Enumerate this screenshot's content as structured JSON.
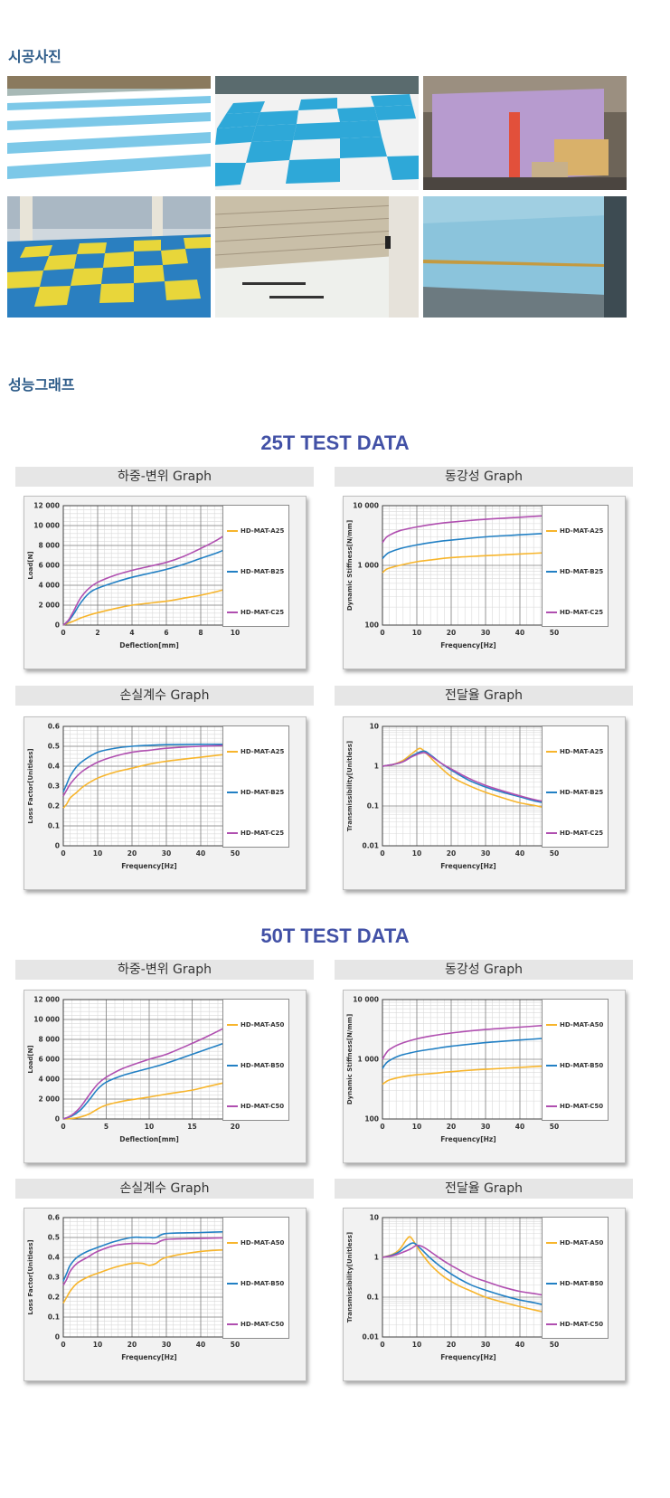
{
  "sections": {
    "photos_title": "시공사진",
    "graphs_title": "성능그래프"
  },
  "photos": [
    {
      "desc": "rooftop"
    },
    {
      "desc": "checker"
    },
    {
      "desc": "wall"
    },
    {
      "desc": "yellow-blue"
    },
    {
      "desc": "tunnel"
    },
    {
      "desc": "blue-wall"
    }
  ],
  "colors": {
    "A": "#f7b52c",
    "B": "#2280c4",
    "C": "#b04fb0",
    "title": "#4251a6",
    "section": "#2f5d8a"
  },
  "test_blocks": [
    {
      "title": "25T TEST DATA",
      "suffix": "25"
    },
    {
      "title": "50T TEST DATA",
      "suffix": "50"
    }
  ],
  "panel_titles": {
    "load": "하중-변위 Graph",
    "stiff": "동강성 Graph",
    "loss": "손실계수 Graph",
    "trans": "전달율 Graph"
  },
  "chart_data": [
    {
      "id": "load25",
      "type": "line",
      "xlabel": "Deflection[mm]",
      "ylabel": "Load[N]",
      "xlim": [
        0,
        10
      ],
      "ylim": [
        0,
        12000
      ],
      "xticks": [
        0,
        2,
        4,
        6,
        8,
        10
      ],
      "xticklabels": [
        "0",
        "2",
        "4",
        "6",
        "8",
        "10"
      ],
      "yticks": [
        0,
        2000,
        4000,
        6000,
        8000,
        10000,
        12000
      ],
      "yticklabels": [
        "0",
        "2 000",
        "4 000",
        "6 000",
        "8 000",
        "10 000",
        "12 000"
      ],
      "series": [
        {
          "name": "HD-MAT-A25",
          "color": "#f7b52c",
          "x": [
            0,
            0.3,
            0.6,
            1,
            1.5,
            2,
            3,
            4,
            5,
            6,
            7,
            8,
            9,
            10
          ],
          "y": [
            0,
            200,
            400,
            700,
            1000,
            1250,
            1650,
            2000,
            2200,
            2400,
            2700,
            3000,
            3400,
            3850
          ]
        },
        {
          "name": "HD-MAT-B25",
          "color": "#2280c4",
          "x": [
            0,
            0.3,
            0.6,
            1,
            1.5,
            2,
            3,
            4,
            5,
            6,
            7,
            8,
            9,
            10
          ],
          "y": [
            0,
            400,
            1100,
            2200,
            3200,
            3700,
            4300,
            4800,
            5200,
            5600,
            6100,
            6700,
            7300,
            8000
          ]
        },
        {
          "name": "HD-MAT-C25",
          "color": "#b04fb0",
          "x": [
            0,
            0.3,
            0.6,
            1,
            1.5,
            2,
            3,
            4,
            5,
            6,
            7,
            8,
            9,
            10
          ],
          "y": [
            0,
            500,
            1400,
            2700,
            3700,
            4300,
            5000,
            5500,
            5900,
            6300,
            6900,
            7700,
            8600,
            9700
          ]
        }
      ]
    },
    {
      "id": "stiff25",
      "type": "line",
      "xlabel": "Frequency[Hz]",
      "ylabel": "Dynamic Stiffness[N/mm]",
      "xlim": [
        0,
        50
      ],
      "ylim": [
        100,
        10000
      ],
      "yscale": "log",
      "xticks": [
        0,
        10,
        20,
        30,
        40,
        50
      ],
      "xticklabels": [
        "0",
        "10",
        "20",
        "30",
        "40",
        "50"
      ],
      "yticks": [
        100,
        1000,
        10000
      ],
      "yticklabels": [
        "100",
        "1 000",
        "10 000"
      ],
      "series": [
        {
          "name": "HD-MAT-A25",
          "color": "#f7b52c",
          "x": [
            0,
            1,
            2,
            5,
            10,
            15,
            20,
            30,
            40,
            50
          ],
          "y": [
            750,
            850,
            900,
            1000,
            1150,
            1250,
            1350,
            1450,
            1550,
            1650
          ]
        },
        {
          "name": "HD-MAT-B25",
          "color": "#2280c4",
          "x": [
            0,
            1,
            2,
            5,
            10,
            15,
            20,
            30,
            40,
            50
          ],
          "y": [
            1300,
            1500,
            1650,
            1900,
            2200,
            2450,
            2650,
            3000,
            3250,
            3500
          ]
        },
        {
          "name": "HD-MAT-C25",
          "color": "#b04fb0",
          "x": [
            0,
            1,
            2,
            5,
            10,
            15,
            20,
            30,
            40,
            50
          ],
          "y": [
            2400,
            2900,
            3200,
            3800,
            4400,
            4900,
            5300,
            5900,
            6400,
            6900
          ]
        }
      ]
    },
    {
      "id": "loss25",
      "type": "line",
      "xlabel": "Frequency[Hz]",
      "ylabel": "Loss Factor[Unitless]",
      "xlim": [
        0,
        50
      ],
      "ylim": [
        0,
        0.6
      ],
      "xticks": [
        0,
        10,
        20,
        30,
        40,
        50
      ],
      "xticklabels": [
        "0",
        "10",
        "20",
        "30",
        "40",
        "50"
      ],
      "yticks": [
        0,
        0.1,
        0.2,
        0.3,
        0.4,
        0.5,
        0.6
      ],
      "yticklabels": [
        "0",
        "0.1",
        "0.2",
        "0.3",
        "0.4",
        "0.5",
        "0.6"
      ],
      "series": [
        {
          "name": "HD-MAT-A25",
          "color": "#f7b52c",
          "x": [
            0,
            1,
            2,
            4,
            6,
            10,
            15,
            20,
            25,
            30,
            40,
            50
          ],
          "y": [
            0.19,
            0.21,
            0.24,
            0.27,
            0.3,
            0.34,
            0.37,
            0.39,
            0.41,
            0.425,
            0.445,
            0.465
          ]
        },
        {
          "name": "HD-MAT-B25",
          "color": "#2280c4",
          "x": [
            0,
            1,
            2,
            4,
            6,
            10,
            15,
            20,
            25,
            30,
            40,
            50
          ],
          "y": [
            0.27,
            0.31,
            0.35,
            0.4,
            0.43,
            0.47,
            0.49,
            0.5,
            0.505,
            0.508,
            0.51,
            0.51
          ]
        },
        {
          "name": "HD-MAT-C25",
          "color": "#b04fb0",
          "x": [
            0,
            1,
            2,
            4,
            6,
            10,
            15,
            20,
            25,
            30,
            40,
            50
          ],
          "y": [
            0.25,
            0.28,
            0.31,
            0.35,
            0.38,
            0.42,
            0.45,
            0.47,
            0.48,
            0.49,
            0.5,
            0.505
          ]
        }
      ]
    },
    {
      "id": "trans25",
      "type": "line",
      "xlabel": "Frequency[Hz]",
      "ylabel": "Transmissibility[Unitless]",
      "xlim": [
        0,
        50
      ],
      "ylim": [
        0.01,
        10
      ],
      "yscale": "log",
      "xticks": [
        0,
        10,
        20,
        30,
        40,
        50
      ],
      "xticklabels": [
        "0",
        "10",
        "20",
        "30",
        "40",
        "50"
      ],
      "yticks": [
        0.01,
        0.1,
        1,
        10
      ],
      "yticklabels": [
        "0.01",
        "0.1",
        "1",
        "10"
      ],
      "series": [
        {
          "name": "HD-MAT-A25",
          "color": "#f7b52c",
          "x": [
            0,
            3,
            6,
            9,
            11,
            13,
            16,
            20,
            25,
            30,
            35,
            40,
            45,
            50
          ],
          "y": [
            1,
            1.1,
            1.4,
            2.2,
            2.8,
            2.0,
            1.1,
            0.55,
            0.33,
            0.22,
            0.16,
            0.12,
            0.1,
            0.08
          ]
        },
        {
          "name": "HD-MAT-B25",
          "color": "#2280c4",
          "x": [
            0,
            3,
            6,
            9,
            12,
            14,
            17,
            20,
            25,
            30,
            35,
            40,
            45,
            50
          ],
          "y": [
            1,
            1.1,
            1.3,
            1.9,
            2.4,
            1.9,
            1.2,
            0.8,
            0.45,
            0.3,
            0.22,
            0.17,
            0.13,
            0.11
          ]
        },
        {
          "name": "HD-MAT-C25",
          "color": "#b04fb0",
          "x": [
            0,
            3,
            6,
            9,
            12,
            14,
            17,
            20,
            25,
            30,
            35,
            40,
            45,
            50
          ],
          "y": [
            1,
            1.1,
            1.3,
            1.8,
            2.2,
            1.8,
            1.2,
            0.85,
            0.5,
            0.33,
            0.24,
            0.18,
            0.14,
            0.12
          ]
        }
      ]
    },
    {
      "id": "load50",
      "type": "line",
      "xlabel": "Deflection[mm]",
      "ylabel": "Load[N]",
      "xlim": [
        0,
        20
      ],
      "ylim": [
        0,
        12000
      ],
      "xticks": [
        0,
        5,
        10,
        15,
        20
      ],
      "xticklabels": [
        "0",
        "5",
        "10",
        "15",
        "20"
      ],
      "yticks": [
        0,
        2000,
        4000,
        6000,
        8000,
        10000,
        12000
      ],
      "yticklabels": [
        "0",
        "2 000",
        "4 000",
        "6 000",
        "8 000",
        "10 000",
        "12 000"
      ],
      "series": [
        {
          "name": "HD-MAT-A50",
          "color": "#f7b52c",
          "x": [
            0,
            1,
            2,
            3,
            4,
            5,
            7,
            10,
            12,
            15,
            17,
            20
          ],
          "y": [
            0,
            50,
            200,
            500,
            1000,
            1400,
            1800,
            2200,
            2500,
            2900,
            3300,
            3900
          ]
        },
        {
          "name": "HD-MAT-B50",
          "color": "#2280c4",
          "x": [
            0,
            1,
            2,
            3,
            4,
            5,
            7,
            10,
            12,
            15,
            17,
            20
          ],
          "y": [
            0,
            300,
            900,
            1900,
            3000,
            3700,
            4400,
            5100,
            5600,
            6500,
            7100,
            8000
          ]
        },
        {
          "name": "HD-MAT-C50",
          "color": "#b04fb0",
          "x": [
            0,
            1,
            2,
            3,
            4,
            5,
            7,
            10,
            12,
            15,
            17,
            20
          ],
          "y": [
            0,
            400,
            1200,
            2400,
            3500,
            4200,
            5100,
            6000,
            6500,
            7600,
            8400,
            9700
          ]
        }
      ]
    },
    {
      "id": "stiff50",
      "type": "line",
      "xlabel": "Frequency[Hz]",
      "ylabel": "Dynamic Stiffness[N/mm]",
      "xlim": [
        0,
        50
      ],
      "ylim": [
        100,
        10000
      ],
      "yscale": "log",
      "xticks": [
        0,
        10,
        20,
        30,
        40,
        50
      ],
      "xticklabels": [
        "0",
        "10",
        "20",
        "30",
        "40",
        "50"
      ],
      "yticks": [
        100,
        1000,
        10000
      ],
      "yticklabels": [
        "100",
        "1 000",
        "10 000"
      ],
      "series": [
        {
          "name": "HD-MAT-A50",
          "color": "#f7b52c",
          "x": [
            0,
            1,
            2,
            5,
            10,
            15,
            20,
            30,
            40,
            50
          ],
          "y": [
            380,
            420,
            450,
            500,
            550,
            580,
            620,
            680,
            730,
            790
          ]
        },
        {
          "name": "HD-MAT-B50",
          "color": "#2280c4",
          "x": [
            0,
            1,
            2,
            5,
            10,
            15,
            20,
            30,
            40,
            50
          ],
          "y": [
            700,
            850,
            950,
            1150,
            1350,
            1500,
            1650,
            1900,
            2100,
            2300
          ]
        },
        {
          "name": "HD-MAT-C50",
          "color": "#b04fb0",
          "x": [
            0,
            1,
            2,
            5,
            10,
            15,
            20,
            30,
            40,
            50
          ],
          "y": [
            1000,
            1250,
            1450,
            1800,
            2200,
            2500,
            2750,
            3150,
            3450,
            3800
          ]
        }
      ]
    },
    {
      "id": "loss50",
      "type": "line",
      "xlabel": "Frequency[Hz]",
      "ylabel": "Loss Factor[Unitless]",
      "xlim": [
        0,
        50
      ],
      "ylim": [
        0,
        0.6
      ],
      "xticks": [
        0,
        10,
        20,
        30,
        40,
        50
      ],
      "xticklabels": [
        "0",
        "10",
        "20",
        "30",
        "40",
        "50"
      ],
      "yticks": [
        0,
        0.1,
        0.2,
        0.3,
        0.4,
        0.5,
        0.6
      ],
      "yticklabels": [
        "0",
        "0.1",
        "0.2",
        "0.3",
        "0.4",
        "0.5",
        "0.6"
      ],
      "series": [
        {
          "name": "HD-MAT-A50",
          "color": "#f7b52c",
          "x": [
            0,
            1,
            2,
            4,
            7,
            10,
            15,
            20,
            23,
            25,
            27,
            30,
            40,
            50
          ],
          "y": [
            0.17,
            0.2,
            0.23,
            0.27,
            0.3,
            0.32,
            0.35,
            0.37,
            0.37,
            0.36,
            0.37,
            0.4,
            0.43,
            0.44
          ]
        },
        {
          "name": "HD-MAT-B50",
          "color": "#2280c4",
          "x": [
            0,
            1,
            2,
            4,
            7,
            10,
            15,
            20,
            23,
            25,
            27,
            30,
            40,
            50
          ],
          "y": [
            0.28,
            0.32,
            0.36,
            0.4,
            0.43,
            0.45,
            0.48,
            0.5,
            0.5,
            0.5,
            0.5,
            0.52,
            0.525,
            0.53
          ]
        },
        {
          "name": "HD-MAT-C50",
          "color": "#b04fb0",
          "x": [
            0,
            1,
            2,
            4,
            7,
            10,
            15,
            20,
            23,
            25,
            27,
            30,
            40,
            50
          ],
          "y": [
            0.26,
            0.29,
            0.33,
            0.37,
            0.4,
            0.43,
            0.46,
            0.47,
            0.47,
            0.47,
            0.47,
            0.49,
            0.495,
            0.5
          ]
        }
      ]
    },
    {
      "id": "trans50",
      "type": "line",
      "xlabel": "Frequency[Hz]",
      "ylabel": "Transmissibility[Unitless]",
      "xlim": [
        0,
        50
      ],
      "ylim": [
        0.01,
        10
      ],
      "yscale": "log",
      "xticks": [
        0,
        10,
        20,
        30,
        40,
        50
      ],
      "xticklabels": [
        "0",
        "10",
        "20",
        "30",
        "40",
        "50"
      ],
      "yticks": [
        0.01,
        0.1,
        1,
        10
      ],
      "yticklabels": [
        "0.01",
        "0.1",
        "1",
        "10"
      ],
      "series": [
        {
          "name": "HD-MAT-A50",
          "color": "#f7b52c",
          "x": [
            0,
            3,
            5,
            7,
            8,
            9,
            11,
            14,
            18,
            22,
            26,
            30,
            35,
            40,
            45,
            50
          ],
          "y": [
            1,
            1.2,
            1.6,
            2.8,
            3.3,
            2.6,
            1.4,
            0.65,
            0.32,
            0.2,
            0.14,
            0.1,
            0.075,
            0.058,
            0.046,
            0.038
          ]
        },
        {
          "name": "HD-MAT-B50",
          "color": "#2280c4",
          "x": [
            0,
            3,
            5,
            7,
            9,
            11,
            14,
            18,
            22,
            26,
            30,
            35,
            40,
            45,
            50
          ],
          "y": [
            1,
            1.15,
            1.4,
            1.9,
            2.3,
            1.7,
            0.95,
            0.5,
            0.3,
            0.2,
            0.15,
            0.11,
            0.085,
            0.07,
            0.055
          ]
        },
        {
          "name": "HD-MAT-C50",
          "color": "#b04fb0",
          "x": [
            0,
            3,
            5,
            8,
            10,
            12,
            15,
            18,
            22,
            26,
            30,
            35,
            40,
            45,
            50
          ],
          "y": [
            1,
            1.1,
            1.25,
            1.6,
            2.0,
            1.8,
            1.2,
            0.8,
            0.5,
            0.33,
            0.25,
            0.18,
            0.14,
            0.12,
            0.1
          ]
        }
      ]
    }
  ]
}
